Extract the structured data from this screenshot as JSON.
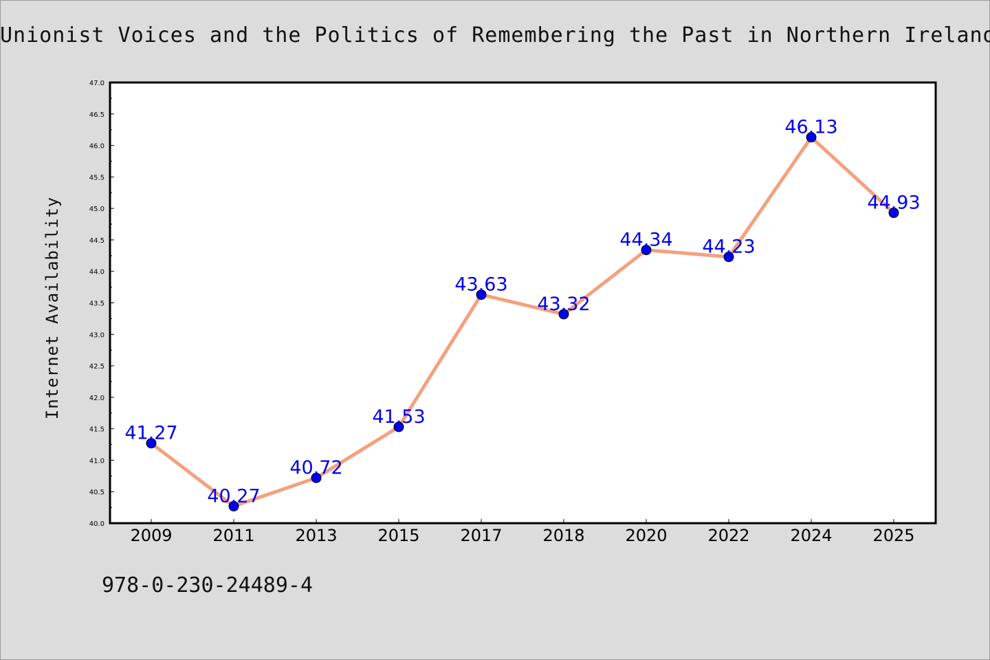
{
  "title": "Unionist Voices and the Politics of Remembering the Past in Northern Ireland",
  "footer_text": "978-0-230-24489-4",
  "chart_data": {
    "type": "line",
    "title": "Unionist Voices and the Politics of Remembering the Past in Northern Ireland",
    "xlabel": "",
    "ylabel": "Internet Availability",
    "categories": [
      "2009",
      "2011",
      "2013",
      "2015",
      "2017",
      "2018",
      "2020",
      "2022",
      "2024",
      "2025"
    ],
    "values": [
      41.27,
      40.27,
      40.72,
      41.53,
      43.63,
      43.32,
      44.34,
      44.23,
      46.13,
      44.93
    ],
    "data_labels": [
      "41.27",
      "40.27",
      "40.72",
      "41.53",
      "43.63",
      "43.32",
      "44.34",
      "44.23",
      "46.13",
      "44.93"
    ],
    "ylim": [
      40.0,
      47.0
    ],
    "yticks": [
      "40.0",
      "40.5",
      "41.0",
      "41.5",
      "42.0",
      "42.5",
      "43.0",
      "43.5",
      "44.0",
      "44.5",
      "45.0",
      "45.5",
      "46.0",
      "46.5",
      "47.0"
    ],
    "grid": false,
    "legend": "none",
    "colors": {
      "background": "#dcdcdc",
      "plot_background": "#ffffff",
      "line": "#f4a07e",
      "marker": "#0000ee",
      "label": "#0000ee"
    }
  }
}
